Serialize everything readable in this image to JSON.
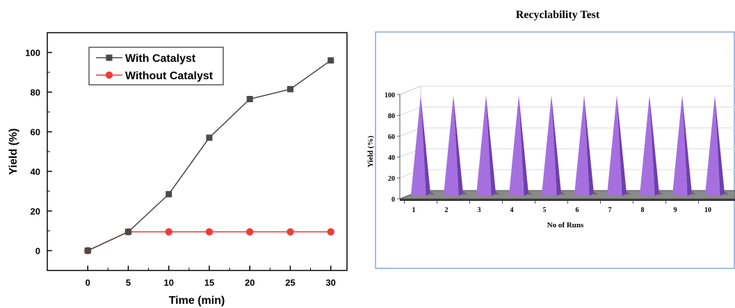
{
  "chart_data": [
    {
      "type": "line",
      "xlabel": "Time (min)",
      "ylabel": "Yield (%)",
      "xlim": [
        -5,
        32
      ],
      "ylim": [
        -10,
        110
      ],
      "xticks": [
        "0",
        "5",
        "10",
        "15",
        "20",
        "25",
        "30"
      ],
      "yticks": [
        "0",
        "20",
        "40",
        "60",
        "80",
        "100"
      ],
      "legend": "top-left",
      "series": [
        {
          "name": "With Catalyst",
          "color": "#4a4a4a",
          "marker": "square",
          "x": [
            0,
            5,
            10,
            15,
            20,
            25,
            30
          ],
          "y": [
            0,
            9.5,
            28.5,
            57,
            76.5,
            81.5,
            96
          ]
        },
        {
          "name": "Without Catalyst",
          "color": "#ef3b3b",
          "marker": "circle",
          "x": [
            0,
            5,
            10,
            15,
            20,
            25,
            30
          ],
          "y": [
            0,
            9.5,
            9.5,
            9.5,
            9.5,
            9.5,
            9.5
          ]
        }
      ]
    },
    {
      "type": "bar",
      "title": "Recyclability Test",
      "xlabel": "No of Runs",
      "ylabel": "Yield (%)",
      "ylim": [
        0,
        100
      ],
      "yticks": [
        "0",
        "20",
        "40",
        "60",
        "80",
        "100"
      ],
      "categories": [
        "1",
        "2",
        "3",
        "4",
        "5",
        "6",
        "7",
        "8",
        "9",
        "10"
      ],
      "values": [
        98,
        98,
        98,
        98,
        98,
        98,
        98,
        98,
        98,
        98
      ],
      "bar_color": "#a66fe0"
    }
  ]
}
